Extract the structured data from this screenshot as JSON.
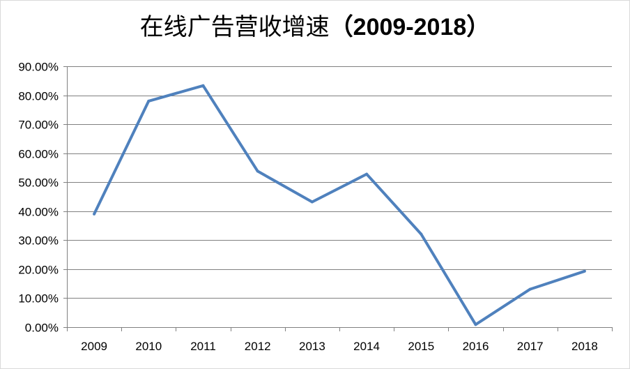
{
  "chart_data": {
    "type": "line",
    "title": "在线广告营收增速",
    "title_range": "（2009-2018）",
    "xlabel": "",
    "ylabel": "",
    "categories": [
      "2009",
      "2010",
      "2011",
      "2012",
      "2013",
      "2014",
      "2015",
      "2016",
      "2017",
      "2018"
    ],
    "series": [
      {
        "values": [
          39.0,
          78.0,
          83.3,
          53.8,
          43.2,
          52.8,
          32.1,
          0.9,
          13.1,
          19.3
        ],
        "color": "#4f81bd"
      }
    ],
    "ylim": [
      0,
      90
    ],
    "y_ticks": [
      "0.00%",
      "10.00%",
      "20.00%",
      "30.00%",
      "40.00%",
      "50.00%",
      "60.00%",
      "70.00%",
      "80.00%",
      "90.00%"
    ],
    "grid": true,
    "legend": "none",
    "colors": {
      "line": "#4f81bd",
      "grid": "#808080",
      "axis": "#808080"
    }
  }
}
